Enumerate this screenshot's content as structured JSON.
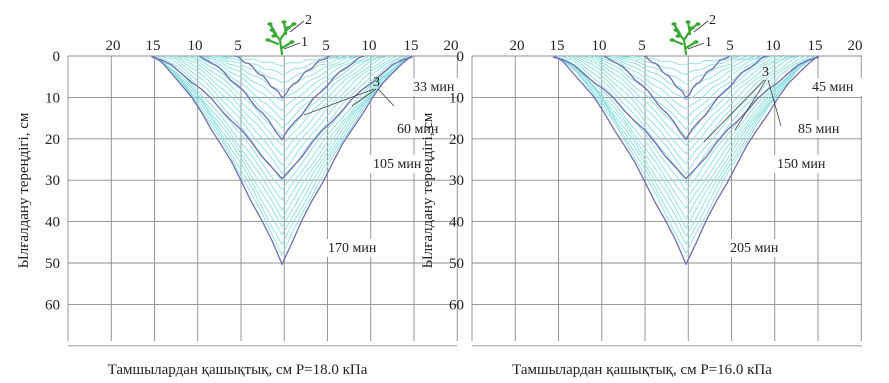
{
  "figure": {
    "colors": {
      "grid": "#8c8c8c",
      "front": "#6e6eb4",
      "intermediate": "#8ee0e0",
      "plant": "#39a935",
      "text": "#222222"
    },
    "panels": [
      {
        "id": "left",
        "top_ticks": [
          "20",
          "15",
          "10",
          "5",
          "5",
          "10",
          "15",
          "20"
        ],
        "depth_ticks": [
          "0",
          "10",
          "20",
          "30",
          "40",
          "50",
          "60"
        ],
        "ylabel": "Ылғалдану тереңдігі, см",
        "xlabel": "Тамшылардан қашықтық, см Р=18.0 кПа",
        "plant_labels": [
          "2",
          "1"
        ],
        "marker_label": "3",
        "fronts": [
          {
            "time_label": "33 мин",
            "depth_cm": 10,
            "half_width_cm": 5.7
          },
          {
            "time_label": "60 мин",
            "depth_cm": 20,
            "half_width_cm": 9.9
          },
          {
            "time_label": "105 мин",
            "depth_cm": 30,
            "half_width_cm": 15.5
          },
          {
            "time_label": "170 мин",
            "depth_cm": 50,
            "half_width_cm": 15.5
          }
        ]
      },
      {
        "id": "right",
        "top_ticks": [
          "20",
          "15",
          "10",
          "5",
          "5",
          "10",
          "15",
          "20"
        ],
        "depth_ticks": [
          "0",
          "10",
          "20",
          "30",
          "40",
          "50",
          "60"
        ],
        "ylabel": "Ылғалдану тереңдігі, см",
        "xlabel": "Тамшылардан қашықтық, см Р=16.0 кПа",
        "plant_labels": [
          "2",
          "1"
        ],
        "marker_label": "3",
        "fronts": [
          {
            "time_label": "45 мин",
            "depth_cm": 10,
            "half_width_cm": 5.2
          },
          {
            "time_label": "85 мин",
            "depth_cm": 20,
            "half_width_cm": 9.8
          },
          {
            "time_label": "150 мин",
            "depth_cm": 30,
            "half_width_cm": 15.8
          },
          {
            "time_label": "205 мин",
            "depth_cm": 50,
            "half_width_cm": 15.8
          }
        ]
      }
    ]
  }
}
